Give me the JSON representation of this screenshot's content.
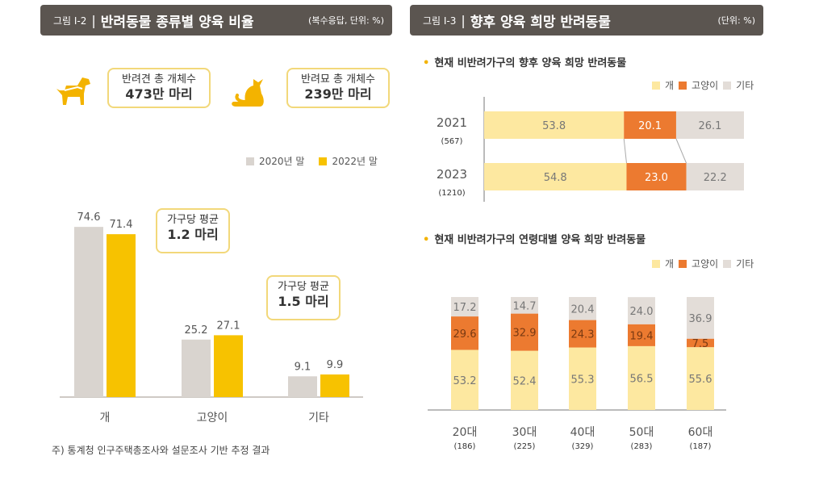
{
  "left": {
    "figure_label": "그림 Ⅰ-2",
    "title": "반려동물 종류별 양육 비율",
    "unit": "(복수응답, 단위: %)",
    "dog_bubble": {
      "line1": "반려견 총 개체수",
      "line2": "473만 마리"
    },
    "cat_bubble": {
      "line1": "반려묘 총 개체수",
      "line2": "239만 마리"
    },
    "legend": [
      {
        "label": "2020년 말",
        "color": "#d9d4cf"
      },
      {
        "label": "2022년 말",
        "color": "#f7c200"
      }
    ],
    "avg_dog": {
      "line1": "가구당 평균",
      "line2": "1.2 마리"
    },
    "avg_cat": {
      "line1": "가구당 평균",
      "line2": "1.5 마리"
    },
    "footnote": "주) 통계청 인구주택총조사와 설문조사 기반 추정 결과"
  },
  "right": {
    "figure_label": "그림 Ⅰ-3",
    "title": "향후 양육 희망 반려동물",
    "unit": "(단위: %)",
    "sub1": "현재 비반려가구의 향후 양육 희망 반려동물",
    "sub2": "현재 비반려가구의 연령대별 양육 희망 반려동물",
    "legend": [
      {
        "label": "개",
        "color": "#fde8a0"
      },
      {
        "label": "고양이",
        "color": "#ec7a30"
      },
      {
        "label": "기타",
        "color": "#e3ddd8"
      }
    ]
  },
  "chart_data": [
    {
      "type": "bar",
      "title": "반려동물 종류별 양육 비율",
      "categories": [
        "개",
        "고양이",
        "기타"
      ],
      "series": [
        {
          "name": "2020년 말",
          "values": [
            74.6,
            25.2,
            9.1
          ],
          "color": "#d9d4cf"
        },
        {
          "name": "2022년 말",
          "values": [
            71.4,
            27.1,
            9.9
          ],
          "color": "#f7c200"
        }
      ],
      "ylim": [
        0,
        80
      ]
    },
    {
      "type": "bar",
      "orientation": "horizontal-stacked",
      "title": "현재 비반려가구의 향후 양육 희망 반려동물",
      "categories": [
        "2021",
        "2023"
      ],
      "sample_sizes": [
        "(567)",
        "(1210)"
      ],
      "series": [
        {
          "name": "개",
          "values": [
            53.8,
            54.8
          ],
          "color": "#fde8a0"
        },
        {
          "name": "고양이",
          "values": [
            20.1,
            23.0
          ],
          "color": "#ec7a30"
        },
        {
          "name": "기타",
          "values": [
            26.1,
            22.2
          ],
          "color": "#e3ddd8"
        }
      ],
      "xlim": [
        0,
        100
      ]
    },
    {
      "type": "bar",
      "orientation": "vertical-stacked",
      "title": "현재 비반려가구의 연령대별 양육 희망 반려동물",
      "categories": [
        "20대",
        "30대",
        "40대",
        "50대",
        "60대"
      ],
      "sample_sizes": [
        "(186)",
        "(225)",
        "(329)",
        "(283)",
        "(187)"
      ],
      "series": [
        {
          "name": "개",
          "values": [
            53.2,
            52.4,
            55.3,
            56.5,
            55.6
          ],
          "color": "#fde8a0"
        },
        {
          "name": "고양이",
          "values": [
            29.6,
            32.9,
            24.3,
            19.4,
            7.5
          ],
          "color": "#ec7a30"
        },
        {
          "name": "기타",
          "values": [
            17.2,
            14.7,
            20.4,
            24.0,
            36.9
          ],
          "color": "#e3ddd8"
        }
      ],
      "ylim": [
        0,
        100
      ]
    }
  ]
}
